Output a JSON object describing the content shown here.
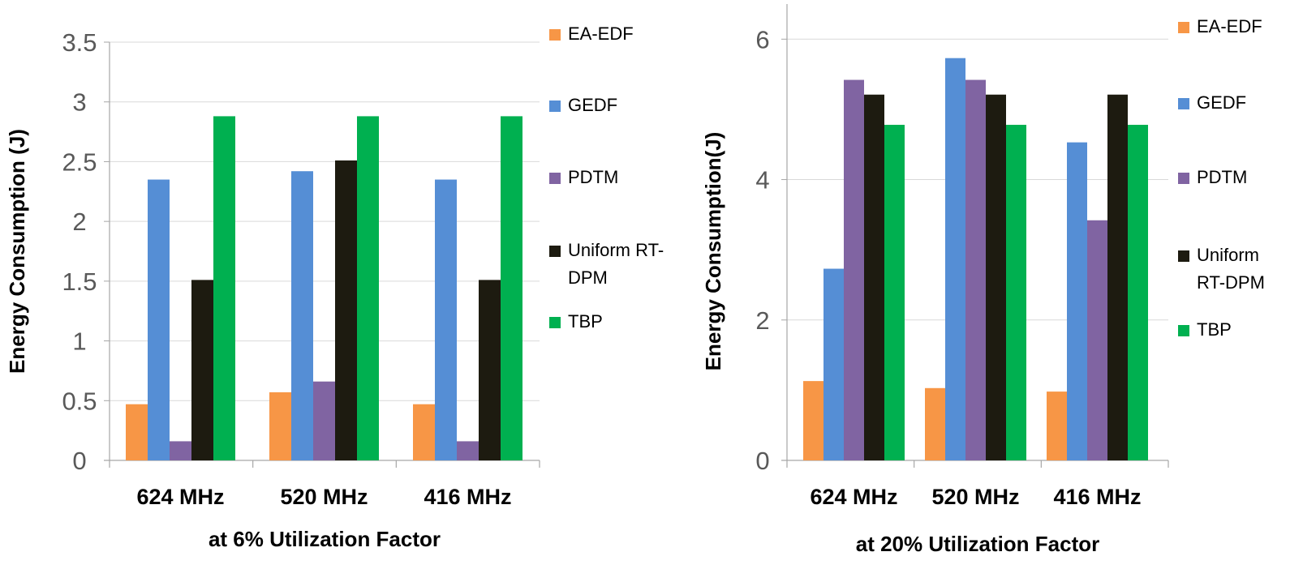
{
  "chart_data": [
    {
      "type": "bar",
      "title": "",
      "xlabel": "at 6% Utilization Factor",
      "ylabel": "Energy Consumption (J)",
      "ylim": [
        0,
        3.5
      ],
      "yticks": [
        "0",
        "0.5",
        "1",
        "1.5",
        "2",
        "2.5",
        "3",
        "3.5"
      ],
      "grid": true,
      "legend_position": "right",
      "categories": [
        "624 MHz",
        "520 MHz",
        "416 MHz"
      ],
      "series": [
        {
          "name": "EA-EDF",
          "color": "#f79646",
          "values": [
            0.47,
            0.57,
            0.47
          ]
        },
        {
          "name": "GEDF",
          "color": "#558ed5",
          "values": [
            2.35,
            2.42,
            2.35
          ]
        },
        {
          "name": "PDTM",
          "color": "#8064a2",
          "values": [
            0.16,
            0.66,
            0.16
          ]
        },
        {
          "name": "Uniform RT-DPM",
          "legend_lines": [
            "Uniform RT-",
            "DPM"
          ],
          "color": "#1d1b10",
          "values": [
            1.51,
            2.51,
            1.51
          ]
        },
        {
          "name": "TBP",
          "color": "#00b050",
          "values": [
            2.88,
            2.88,
            2.88
          ]
        }
      ]
    },
    {
      "type": "bar",
      "title": "",
      "xlabel": "at 20% Utilization Factor",
      "ylabel": "Energy Consumption(J)",
      "ylim": [
        0,
        6.5
      ],
      "yticks": [
        "0",
        "2",
        "4",
        "6"
      ],
      "grid": true,
      "legend_position": "right",
      "categories": [
        "624 MHz",
        "520 MHz",
        "416 MHz"
      ],
      "series": [
        {
          "name": "EA-EDF",
          "color": "#f79646",
          "values": [
            1.13,
            1.03,
            0.98
          ]
        },
        {
          "name": "GEDF",
          "color": "#558ed5",
          "values": [
            2.73,
            5.73,
            4.53
          ]
        },
        {
          "name": "PDTM",
          "color": "#8064a2",
          "values": [
            5.42,
            5.42,
            3.42
          ]
        },
        {
          "name": "Uniform RT-DPM",
          "legend_lines": [
            "Uniform",
            "RT-DPM"
          ],
          "color": "#1d1b10",
          "values": [
            5.21,
            5.21,
            5.21
          ]
        },
        {
          "name": "TBP",
          "color": "#00b050",
          "values": [
            4.78,
            4.78,
            4.78
          ]
        }
      ]
    }
  ]
}
